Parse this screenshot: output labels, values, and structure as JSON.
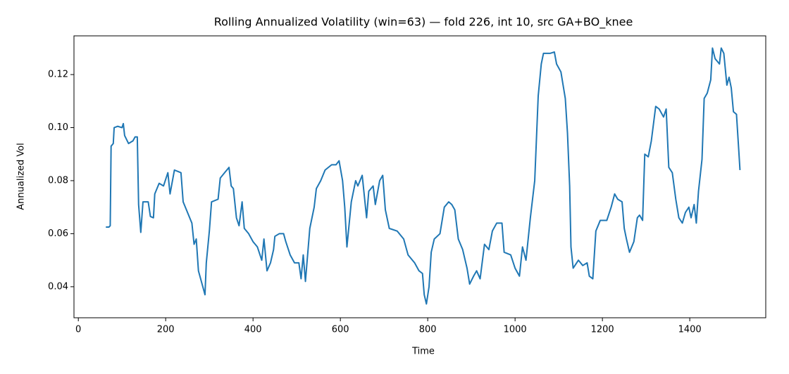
{
  "chart_data": {
    "type": "line",
    "title": "Rolling Annualized Volatility (win=63) — fold 226, int 10, src GA+BO_knee",
    "x_label": "Time",
    "y_label": "Annualized Vol",
    "color": "#1f77b4",
    "x": [
      63,
      70,
      73,
      75,
      80,
      82,
      90,
      100,
      103,
      106,
      115,
      125,
      130,
      135,
      138,
      143,
      148,
      160,
      165,
      172,
      175,
      185,
      195,
      205,
      210,
      220,
      235,
      240,
      250,
      260,
      265,
      270,
      275,
      285,
      290,
      293,
      300,
      305,
      320,
      325,
      335,
      345,
      350,
      355,
      362,
      368,
      375,
      380,
      390,
      400,
      410,
      420,
      425,
      432,
      440,
      447,
      450,
      460,
      470,
      475,
      485,
      495,
      505,
      510,
      515,
      520,
      530,
      540,
      545,
      555,
      565,
      580,
      590,
      597,
      605,
      610,
      615,
      625,
      635,
      640,
      650,
      660,
      665,
      675,
      680,
      690,
      697,
      703,
      712,
      730,
      745,
      755,
      770,
      780,
      788,
      792,
      797,
      803,
      808,
      815,
      828,
      838,
      848,
      855,
      862,
      870,
      880,
      890,
      896,
      905,
      912,
      920,
      930,
      940,
      948,
      958,
      970,
      975,
      990,
      1000,
      1010,
      1017,
      1025,
      1035,
      1045,
      1053,
      1060,
      1065,
      1080,
      1090,
      1095,
      1105,
      1110,
      1115,
      1120,
      1125,
      1128,
      1133,
      1145,
      1155,
      1165,
      1170,
      1178,
      1185,
      1195,
      1210,
      1220,
      1228,
      1235,
      1245,
      1250,
      1255,
      1262,
      1272,
      1280,
      1285,
      1292,
      1297,
      1305,
      1312,
      1322,
      1330,
      1340,
      1346,
      1352,
      1360,
      1368,
      1375,
      1383,
      1390,
      1398,
      1403,
      1410,
      1415,
      1420,
      1428,
      1433,
      1440,
      1448,
      1452,
      1458,
      1468,
      1472,
      1478,
      1485,
      1490,
      1495,
      1500,
      1507,
      1512,
      1515
    ],
    "values": [
      0.0625,
      0.0625,
      0.063,
      0.093,
      0.094,
      0.1,
      0.1005,
      0.1,
      0.1015,
      0.097,
      0.094,
      0.095,
      0.0965,
      0.0965,
      0.071,
      0.0605,
      0.072,
      0.072,
      0.0665,
      0.066,
      0.075,
      0.079,
      0.078,
      0.083,
      0.075,
      0.084,
      0.083,
      0.072,
      0.068,
      0.064,
      0.056,
      0.058,
      0.046,
      0.04,
      0.037,
      0.049,
      0.061,
      0.072,
      0.073,
      0.081,
      0.083,
      0.085,
      0.078,
      0.077,
      0.066,
      0.063,
      0.072,
      0.062,
      0.06,
      0.057,
      0.055,
      0.05,
      0.058,
      0.046,
      0.049,
      0.054,
      0.059,
      0.06,
      0.06,
      0.057,
      0.052,
      0.049,
      0.049,
      0.043,
      0.052,
      0.042,
      0.062,
      0.07,
      0.077,
      0.08,
      0.084,
      0.086,
      0.086,
      0.0875,
      0.08,
      0.07,
      0.055,
      0.072,
      0.08,
      0.078,
      0.082,
      0.066,
      0.076,
      0.078,
      0.071,
      0.08,
      0.082,
      0.069,
      0.062,
      0.061,
      0.058,
      0.052,
      0.049,
      0.046,
      0.045,
      0.037,
      0.0335,
      0.04,
      0.053,
      0.058,
      0.06,
      0.07,
      0.072,
      0.071,
      0.069,
      0.058,
      0.054,
      0.047,
      0.041,
      0.044,
      0.046,
      0.043,
      0.056,
      0.054,
      0.061,
      0.064,
      0.064,
      0.053,
      0.052,
      0.047,
      0.044,
      0.055,
      0.05,
      0.066,
      0.08,
      0.112,
      0.124,
      0.128,
      0.128,
      0.1285,
      0.124,
      0.121,
      0.116,
      0.111,
      0.098,
      0.078,
      0.055,
      0.047,
      0.05,
      0.048,
      0.049,
      0.044,
      0.043,
      0.061,
      0.065,
      0.065,
      0.07,
      0.075,
      0.073,
      0.072,
      0.062,
      0.058,
      0.053,
      0.057,
      0.066,
      0.067,
      0.065,
      0.09,
      0.089,
      0.095,
      0.108,
      0.107,
      0.104,
      0.107,
      0.085,
      0.083,
      0.073,
      0.066,
      0.064,
      0.068,
      0.07,
      0.066,
      0.071,
      0.064,
      0.076,
      0.088,
      0.111,
      0.113,
      0.118,
      0.13,
      0.126,
      0.124,
      0.13,
      0.128,
      0.116,
      0.119,
      0.115,
      0.106,
      0.105,
      0.092,
      0.084
    ],
    "xlim": [
      -10,
      1574
    ],
    "ylim": [
      0.0283,
      0.1346
    ],
    "xticks": [
      0,
      200,
      400,
      600,
      800,
      1000,
      1200,
      1400
    ],
    "yticks": [
      0.04,
      0.06,
      0.08,
      {
        "value": 0.1,
        "label": "0.10"
      },
      0.12
    ]
  }
}
